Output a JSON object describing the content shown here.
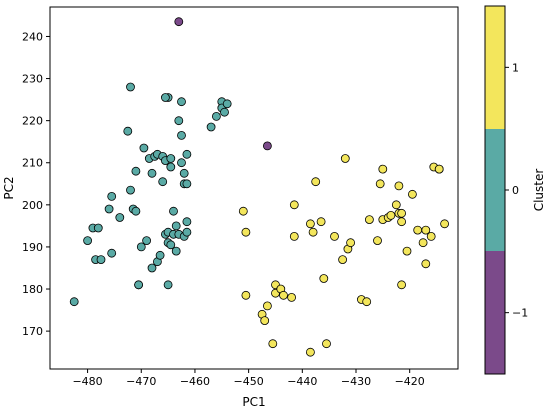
{
  "chart_data": {
    "type": "scatter",
    "title": "",
    "xlabel": "PC1",
    "ylabel": "PC2",
    "xlim": [
      -487,
      -411
    ],
    "ylim": [
      161,
      247
    ],
    "xticks": [
      -480,
      -470,
      -460,
      -450,
      -440,
      -430,
      -420
    ],
    "yticks": [
      170,
      180,
      190,
      200,
      210,
      220,
      230,
      240
    ],
    "grid": false,
    "colorbar": {
      "label": "Cluster",
      "range": [
        -1.5,
        1.5
      ],
      "ticks": [
        -1,
        0,
        1
      ],
      "colors": {
        "-1": "#7b4a8a",
        "0": "#5aaaa5",
        "1": "#f3e65c"
      }
    },
    "series": [
      {
        "cluster": -1,
        "points": [
          [
            -463,
            243.5
          ],
          [
            -446.5,
            214
          ]
        ]
      },
      {
        "cluster": 0,
        "points": [
          [
            -482.5,
            177
          ],
          [
            -480,
            191.5
          ],
          [
            -479,
            194.5
          ],
          [
            -478.5,
            187
          ],
          [
            -478,
            194.5
          ],
          [
            -477.5,
            187
          ],
          [
            -476,
            199
          ],
          [
            -475.5,
            202
          ],
          [
            -475.5,
            188.5
          ],
          [
            -474,
            197
          ],
          [
            -472.5,
            217.5
          ],
          [
            -472,
            228
          ],
          [
            -472,
            203.5
          ],
          [
            -471.5,
            199
          ],
          [
            -471,
            208
          ],
          [
            -471,
            198.5
          ],
          [
            -470.5,
            181
          ],
          [
            -470.5,
            181
          ],
          [
            -470,
            190
          ],
          [
            -469.5,
            213.5
          ],
          [
            -469,
            191.5
          ],
          [
            -468.5,
            211
          ],
          [
            -468,
            207.5
          ],
          [
            -468,
            185
          ],
          [
            -467.5,
            211.5
          ],
          [
            -467,
            212
          ],
          [
            -467,
            186.5
          ],
          [
            -466.5,
            188
          ],
          [
            -466,
            211.5
          ],
          [
            -466,
            205.5
          ],
          [
            -465.5,
            210.5
          ],
          [
            -465.5,
            193
          ],
          [
            -465,
            225.5
          ],
          [
            -465,
            193.5
          ],
          [
            -465,
            191
          ],
          [
            -465,
            181
          ],
          [
            -464.5,
            211
          ],
          [
            -464.5,
            209
          ],
          [
            -464.5,
            190.5
          ],
          [
            -464,
            198.5
          ],
          [
            -464,
            193
          ],
          [
            -463.5,
            195
          ],
          [
            -463.5,
            189
          ],
          [
            -463,
            220
          ],
          [
            -463,
            193
          ],
          [
            -462.5,
            224.5
          ],
          [
            -462.5,
            216.5
          ],
          [
            -462.5,
            210
          ],
          [
            -462,
            207.5
          ],
          [
            -462,
            192.5
          ],
          [
            -462,
            205
          ],
          [
            -461.5,
            212
          ],
          [
            -461.5,
            193.5
          ],
          [
            -461.5,
            196
          ],
          [
            -457,
            218.5
          ],
          [
            -456,
            221
          ],
          [
            -455,
            224.5
          ],
          [
            -455,
            223
          ],
          [
            -454.5,
            222
          ],
          [
            -454,
            224
          ],
          [
            -465.5,
            225.5
          ],
          [
            -461.5,
            205
          ]
        ]
      },
      {
        "cluster": 1,
        "points": [
          [
            -451,
            198.5
          ],
          [
            -450.5,
            193.5
          ],
          [
            -450.5,
            178.5
          ],
          [
            -447.5,
            174
          ],
          [
            -447,
            172.5
          ],
          [
            -446.5,
            176
          ],
          [
            -445.5,
            167
          ],
          [
            -445,
            181
          ],
          [
            -445,
            179
          ],
          [
            -444,
            180
          ],
          [
            -443.5,
            178.5
          ],
          [
            -442,
            178
          ],
          [
            -441.5,
            200
          ],
          [
            -441.5,
            192.5
          ],
          [
            -438.5,
            195.5
          ],
          [
            -438.5,
            165
          ],
          [
            -438,
            193.5
          ],
          [
            -437.5,
            205.5
          ],
          [
            -436.5,
            196
          ],
          [
            -436,
            182.5
          ],
          [
            -435.5,
            167
          ],
          [
            -434,
            192.5
          ],
          [
            -432.5,
            187
          ],
          [
            -432,
            211
          ],
          [
            -431.5,
            189.5
          ],
          [
            -431,
            191
          ],
          [
            -429,
            177.5
          ],
          [
            -428,
            177
          ],
          [
            -427.5,
            196.5
          ],
          [
            -426,
            191.5
          ],
          [
            -425.5,
            205
          ],
          [
            -425,
            208.5
          ],
          [
            -425,
            196.5
          ],
          [
            -424,
            197
          ],
          [
            -423.5,
            197.5
          ],
          [
            -422.5,
            200
          ],
          [
            -422,
            198
          ],
          [
            -422,
            204.5
          ],
          [
            -421.5,
            181
          ],
          [
            -421.5,
            196
          ],
          [
            -421.5,
            198
          ],
          [
            -420.5,
            189
          ],
          [
            -419.5,
            202.5
          ],
          [
            -418.5,
            194
          ],
          [
            -417.5,
            191
          ],
          [
            -417,
            186
          ],
          [
            -417,
            194
          ],
          [
            -416,
            192.5
          ],
          [
            -415.5,
            209
          ],
          [
            -414.5,
            208.5
          ],
          [
            -414.5,
            208.5
          ],
          [
            -413.5,
            195.5
          ]
        ]
      }
    ]
  }
}
